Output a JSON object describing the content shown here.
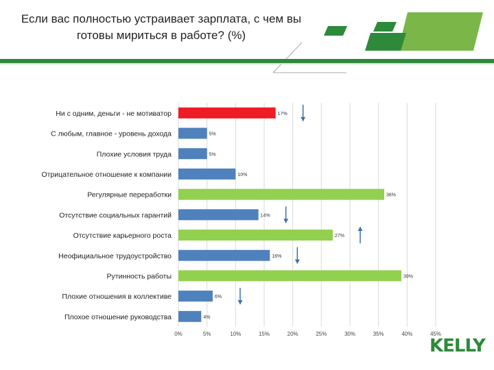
{
  "title": "Если вас полностью устраивает зарплата, с чем вы готовы мириться в работе? (%)",
  "logo": "KELLY",
  "colors": {
    "red": "#ee1c24",
    "blue": "#4f81bd",
    "green": "#92d050",
    "brand": "#2d8a3a"
  },
  "chart_data": {
    "type": "bar",
    "orientation": "horizontal",
    "categories": [
      "Ни с одним, деньги - не мотиватор",
      "С любым, главное - уровень дохода",
      "Плохие условия труда",
      "Отрицательное отношение к компании",
      "Регулярные переработки",
      "Отсутствие социальных гарантий",
      "Отсутствие карьерного роста",
      "Неофициальное трудоустройство",
      "Рутинность работы",
      "Плохие отношения в коллективе",
      "Плохое отношение руководства"
    ],
    "values": [
      17,
      5,
      5,
      10,
      36,
      14,
      27,
      16,
      39,
      6,
      4
    ],
    "value_labels": [
      "17%",
      "5%",
      "5%",
      "10%",
      "36%",
      "14%",
      "27%",
      "16%",
      "39%",
      "6%",
      "4%"
    ],
    "bar_colors": [
      "red",
      "blue",
      "blue",
      "blue",
      "green",
      "blue",
      "green",
      "blue",
      "green",
      "blue",
      "blue"
    ],
    "trend_arrows": [
      "down",
      null,
      null,
      null,
      null,
      "down",
      "up",
      "down",
      null,
      "down",
      null
    ],
    "xlim": [
      0,
      45
    ],
    "xticks": [
      "0%",
      "5%",
      "10%",
      "15%",
      "20%",
      "25%",
      "30%",
      "35%",
      "40%",
      "45%"
    ],
    "grid": true
  }
}
